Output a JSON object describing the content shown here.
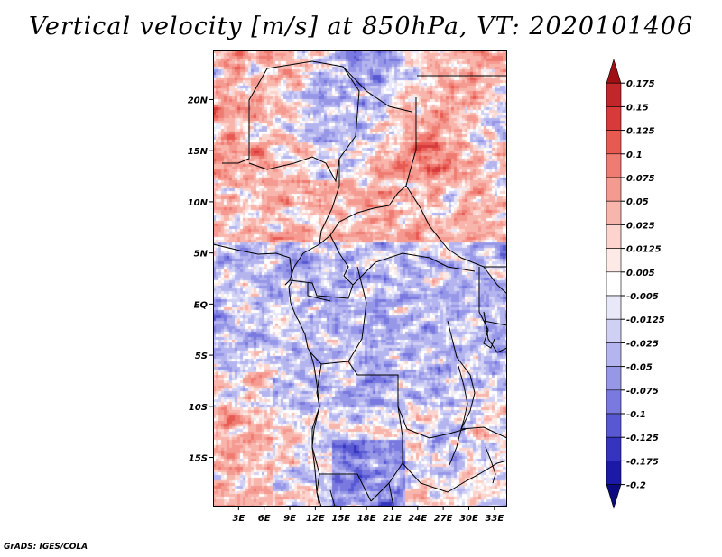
{
  "chart_data": {
    "type": "heatmap",
    "title": "Vertical velocity [m/s] at 850hPa, VT: 2020101406",
    "variable": "Vertical velocity",
    "units": "m/s",
    "level": "850hPa",
    "valid_time": "2020101406",
    "x_ticks": [
      "3E",
      "6E",
      "9E",
      "12E",
      "15E",
      "18E",
      "21E",
      "24E",
      "27E",
      "30E",
      "33E"
    ],
    "y_ticks": [
      "20N",
      "15N",
      "10N",
      "5N",
      "EQ",
      "5S",
      "10S",
      "15S"
    ],
    "xlim": [
      0,
      34.5
    ],
    "ylim": [
      -19.8,
      24.8
    ],
    "colorbar": {
      "levels": [
        "0.175",
        "0.15",
        "0.125",
        "0.1",
        "0.075",
        "0.05",
        "0.025",
        "0.0125",
        "0.005",
        "-0.005",
        "-0.0125",
        "-0.025",
        "-0.05",
        "-0.075",
        "-0.1",
        "-0.125",
        "-0.175",
        "-0.2"
      ],
      "colors": [
        "#a00f14",
        "#c0262a",
        "#d63a3a",
        "#e65a52",
        "#ef7c72",
        "#f59a90",
        "#f8b5ac",
        "#fcd3cd",
        "#fdeae6",
        "#ffffff",
        "#e8e8f9",
        "#d0d0f5",
        "#b4b4ef",
        "#9797e8",
        "#7979df",
        "#5858d2",
        "#3434bf",
        "#1b1aa6",
        "#0b0b7f"
      ]
    }
  },
  "footer": "GrADS: IGES/COLA"
}
